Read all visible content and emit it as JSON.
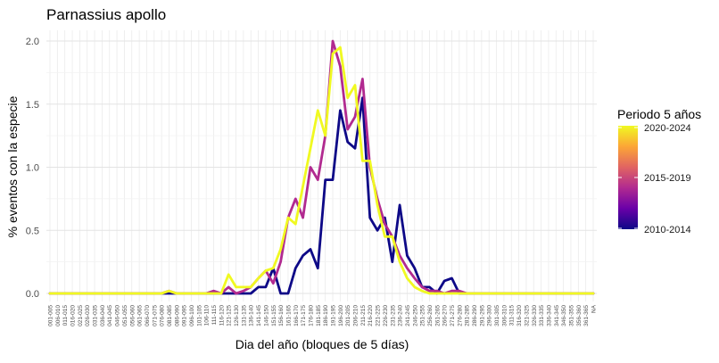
{
  "chart_data": {
    "type": "line",
    "title": "Parnassius apollo",
    "xlabel": "Dia del año (bloques de 5 días)",
    "ylabel": "% eventos con la especie",
    "ylim": [
      0,
      2.0
    ],
    "yticks": [
      "0.0",
      "0.5",
      "1.0",
      "1.5",
      "2.0"
    ],
    "grid": true,
    "legend_position": "right",
    "legend": {
      "title": "Periodo 5 años",
      "labels": [
        "2020-2024",
        "2015-2019",
        "2010-2014"
      ],
      "gradient_colors": [
        "#f0f921",
        "#fca636",
        "#e16462",
        "#b12a90",
        "#6a00a8",
        "#0d0887"
      ]
    },
    "categories": [
      "001-005",
      "006-010",
      "011-015",
      "016-020",
      "021-025",
      "026-030",
      "031-035",
      "036-040",
      "041-045",
      "046-050",
      "051-055",
      "056-060",
      "061-065",
      "066-070",
      "071-075",
      "076-080",
      "081-085",
      "086-090",
      "091-095",
      "096-100",
      "101-105",
      "106-110",
      "111-115",
      "116-120",
      "121-125",
      "126-130",
      "131-135",
      "136-140",
      "141-145",
      "146-150",
      "151-155",
      "156-160",
      "161-165",
      "166-170",
      "171-175",
      "176-180",
      "181-185",
      "186-190",
      "191-195",
      "196-200",
      "201-205",
      "206-210",
      "211-215",
      "216-220",
      "221-225",
      "226-230",
      "231-235",
      "236-240",
      "241-245",
      "246-250",
      "251-255",
      "256-260",
      "261-265",
      "266-270",
      "271-275",
      "276-280",
      "281-285",
      "286-290",
      "291-295",
      "296-300",
      "301-305",
      "306-310",
      "311-315",
      "316-320",
      "321-325",
      "326-330",
      "331-335",
      "336-340",
      "341-345",
      "346-350",
      "351-355",
      "356-360",
      "361-365",
      "NA"
    ],
    "series": [
      {
        "name": "2010-2014",
        "color": "#0d0887",
        "values": [
          0,
          0,
          0,
          0,
          0,
          0,
          0,
          0,
          0,
          0,
          0,
          0,
          0,
          0,
          0,
          0,
          0,
          0,
          0,
          0,
          0,
          0,
          0,
          0,
          0,
          0,
          0,
          0,
          0.05,
          0.05,
          0.2,
          0,
          0,
          0.2,
          0.3,
          0.35,
          0.2,
          0.9,
          0.9,
          1.45,
          1.2,
          1.15,
          1.55,
          0.6,
          0.5,
          0.6,
          0.25,
          0.7,
          0.3,
          0.2,
          0.05,
          0.05,
          0,
          0.1,
          0.12,
          0,
          0,
          0,
          0,
          0,
          0,
          0,
          0,
          0,
          0,
          0,
          0,
          0,
          0,
          0,
          0,
          0,
          0,
          0
        ]
      },
      {
        "name": "2015-2019",
        "color": "#b12a90",
        "values": [
          0,
          0,
          0,
          0,
          0,
          0,
          0,
          0,
          0,
          0,
          0,
          0,
          0,
          0,
          0,
          0,
          0.02,
          0,
          0,
          0,
          0,
          0,
          0.02,
          0,
          0.05,
          0,
          0.02,
          0.05,
          0.12,
          0.18,
          0.08,
          0.25,
          0.6,
          0.75,
          0.6,
          1.0,
          0.9,
          1.25,
          2.0,
          1.8,
          1.3,
          1.4,
          1.7,
          1.0,
          0.75,
          0.55,
          0.45,
          0.3,
          0.2,
          0.12,
          0.05,
          0.02,
          0.02,
          0,
          0.02,
          0.02,
          0,
          0,
          0,
          0,
          0,
          0,
          0,
          0,
          0,
          0,
          0,
          0,
          0,
          0,
          0,
          0,
          0,
          0
        ]
      },
      {
        "name": "2020-2024",
        "color": "#f0f921",
        "values": [
          0,
          0,
          0,
          0,
          0,
          0,
          0,
          0,
          0,
          0,
          0,
          0,
          0,
          0,
          0,
          0,
          0.02,
          0,
          0,
          0,
          0,
          0,
          0,
          0,
          0.15,
          0.05,
          0.05,
          0.05,
          0.12,
          0.18,
          0.2,
          0.35,
          0.6,
          0.55,
          0.85,
          1.15,
          1.45,
          1.25,
          1.9,
          1.95,
          1.55,
          1.65,
          1.05,
          1.05,
          0.7,
          0.45,
          0.45,
          0.25,
          0.12,
          0.05,
          0.02,
          0,
          0,
          0,
          0,
          0,
          0,
          0,
          0,
          0,
          0,
          0,
          0,
          0,
          0,
          0,
          0,
          0,
          0,
          0,
          0,
          0,
          0,
          0
        ]
      }
    ]
  }
}
